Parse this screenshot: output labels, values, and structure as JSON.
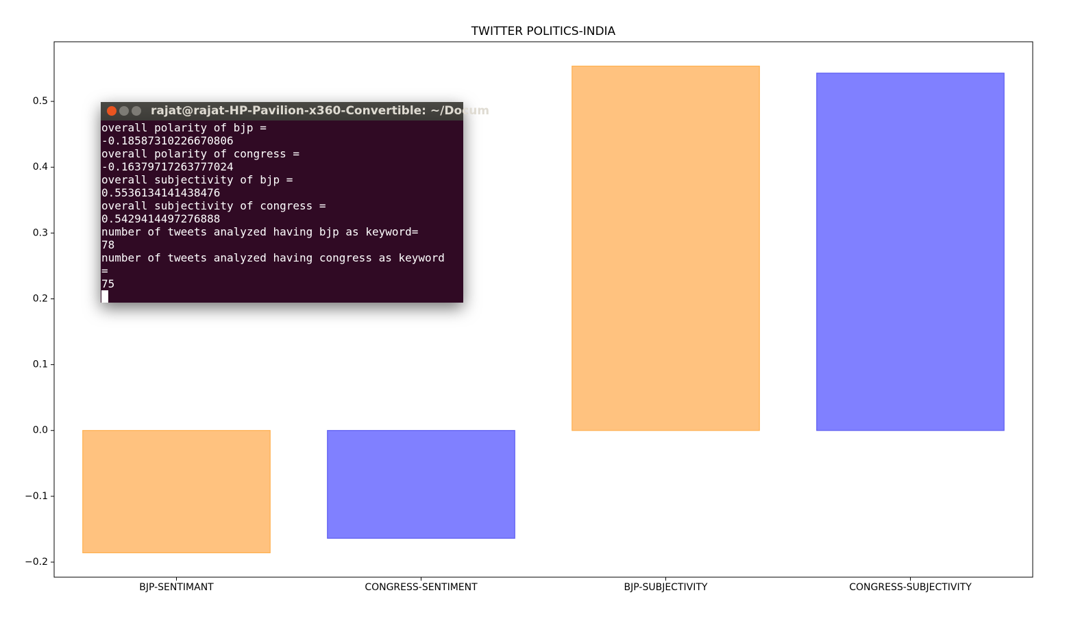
{
  "chart_data": {
    "type": "bar",
    "title": "TWITTER POLITICS-INDIA",
    "categories": [
      "BJP-SENTIMANT",
      "CONGRESS-SENTIMENT",
      "BJP-SUBJECTIVITY",
      "CONGRESS-SUBJECTIVITY"
    ],
    "values": [
      -0.18587310226670806,
      -0.16379717263777024,
      0.5536134141438476,
      0.5429414497276888
    ],
    "colors": [
      "#ffc27f",
      "#8080ff",
      "#ffc27f",
      "#8080ff"
    ],
    "edge_colors": [
      "#ffb04f",
      "#5c5cf0",
      "#ffb04f",
      "#5c5cf0"
    ],
    "ylim": [
      -0.2229,
      0.5906
    ],
    "yticks": [
      {
        "value": -0.2,
        "label": "−0.2"
      },
      {
        "value": -0.1,
        "label": "−0.1"
      },
      {
        "value": 0.0,
        "label": "0.0"
      },
      0.1,
      0.2,
      0.3,
      0.4,
      0.5
    ],
    "grid": false
  },
  "terminal": {
    "title": "rajat@rajat-HP-Pavilion-x360-Convertible: ~/Docum",
    "lines": [
      "overall polarity of bjp =",
      "-0.18587310226670806",
      "overall polarity of congress =",
      "-0.16379717263777024",
      "overall subjectivity of bjp =",
      "0.5536134141438476",
      "overall subjectivity of congress =",
      "0.5429414497276888",
      "number of tweets analyzed having bjp as keyword=",
      "78",
      "number of tweets analyzed having congress as keyword",
      "=",
      "75"
    ]
  }
}
